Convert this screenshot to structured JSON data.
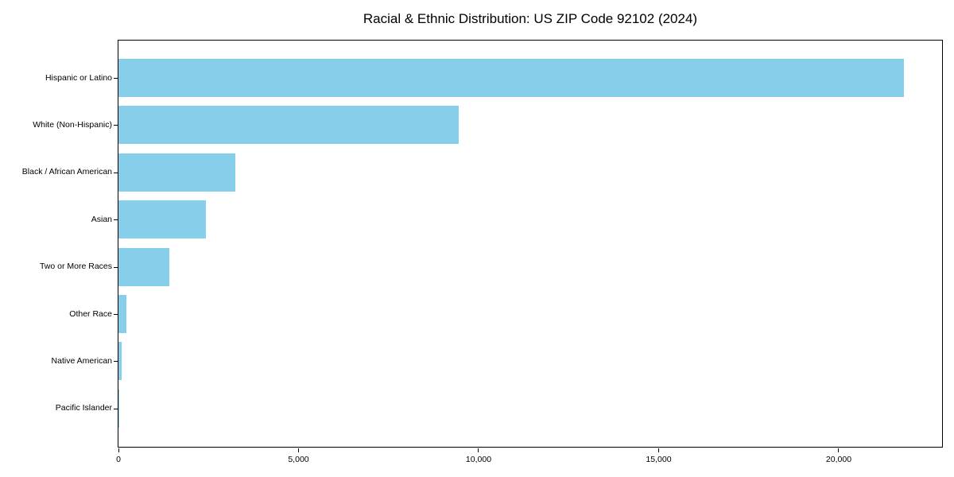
{
  "chart_data": {
    "type": "bar",
    "orientation": "horizontal",
    "title": "Racial & Ethnic Distribution: US ZIP Code 92102 (2024)",
    "categories": [
      "Hispanic or Latino",
      "White (Non-Hispanic)",
      "Black / African American",
      "Asian",
      "Two or More Races",
      "Other Race",
      "Native American",
      "Pacific Islander"
    ],
    "values": [
      21800,
      9440,
      3240,
      2430,
      1410,
      215,
      90,
      20
    ],
    "xlabel": "",
    "ylabel": "",
    "xlim": [
      0,
      22870
    ],
    "x_ticks": [
      0,
      5000,
      10000,
      15000,
      20000
    ],
    "x_tick_labels": [
      "0",
      "5,000",
      "10,000",
      "15,000",
      "20,000"
    ],
    "bar_color": "#87CEEB",
    "background_color": "#ffffff",
    "spine_color": "#000000",
    "grid": false,
    "legend": null
  }
}
